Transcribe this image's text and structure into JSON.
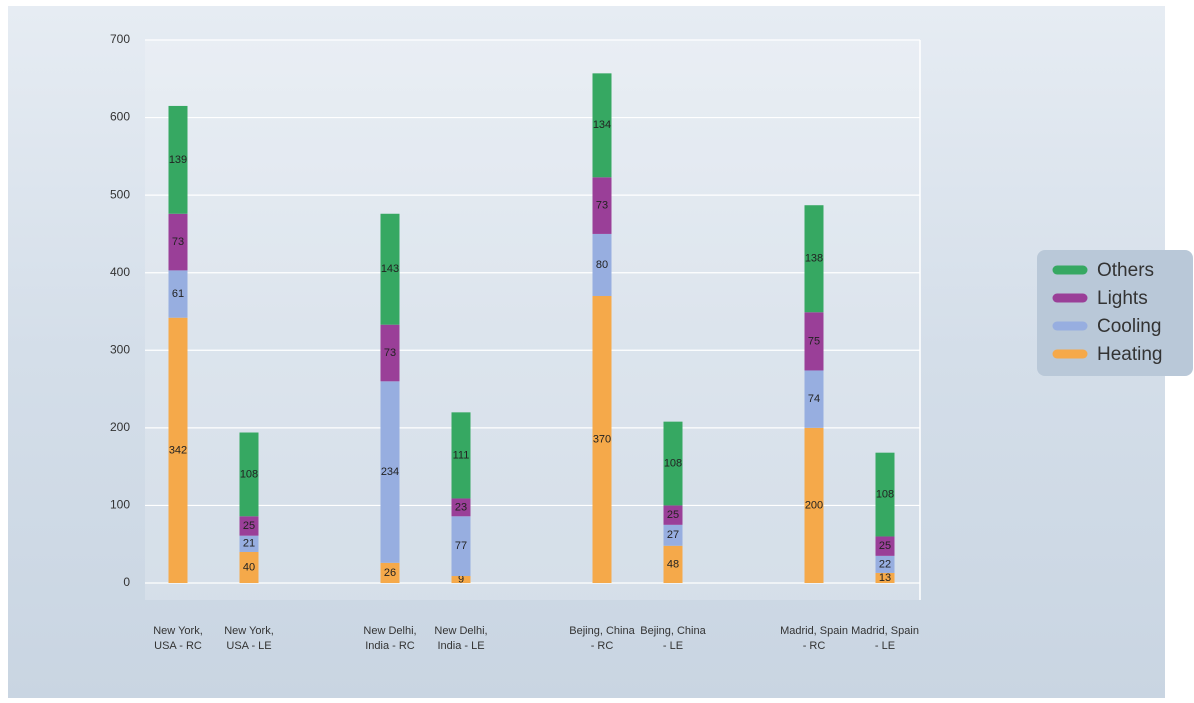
{
  "chart_data": {
    "type": "stacked-bar",
    "categories": [
      "New York, USA - RC",
      "New York, USA - LE",
      "New Delhi, India - RC",
      "New Delhi, India - LE",
      "Bejing, China - RC",
      "Bejing, China - LE",
      "Madrid, Spain - RC",
      "Madrid, Spain - LE"
    ],
    "series": [
      {
        "name": "Heating",
        "color": "#f5a94a",
        "values": [
          342,
          40,
          26,
          9,
          370,
          48,
          200,
          13
        ]
      },
      {
        "name": "Cooling",
        "color": "#97aee0",
        "values": [
          61,
          21,
          234,
          77,
          80,
          27,
          74,
          22
        ]
      },
      {
        "name": "Lights",
        "color": "#9a3f98",
        "values": [
          73,
          25,
          73,
          23,
          73,
          25,
          75,
          25
        ]
      },
      {
        "name": "Others",
        "color": "#36a862",
        "values": [
          139,
          108,
          143,
          111,
          134,
          108,
          138,
          108
        ]
      }
    ],
    "ylim": [
      0,
      700
    ],
    "yticks": [
      0,
      100,
      200,
      300,
      400,
      500,
      600,
      700
    ],
    "grid": true,
    "legend": "right"
  }
}
